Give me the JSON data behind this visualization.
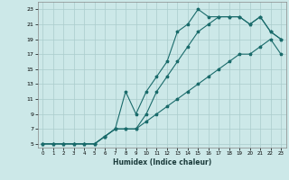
{
  "xlabel": "Humidex (Indice chaleur)",
  "bg_color": "#cce8e8",
  "grid_color": "#aacccc",
  "line_color": "#1a6b6b",
  "xlim": [
    -0.5,
    23.5
  ],
  "ylim": [
    4.5,
    24
  ],
  "xticks": [
    0,
    1,
    2,
    3,
    4,
    5,
    6,
    7,
    8,
    9,
    10,
    11,
    12,
    13,
    14,
    15,
    16,
    17,
    18,
    19,
    20,
    21,
    22,
    23
  ],
  "yticks": [
    5,
    7,
    9,
    11,
    13,
    15,
    17,
    19,
    21,
    23
  ],
  "line1_x": [
    0,
    1,
    2,
    3,
    4,
    5,
    6,
    7,
    8,
    9,
    10,
    11,
    12,
    13,
    14,
    15,
    16,
    17,
    18,
    19,
    20,
    21,
    22,
    23
  ],
  "line1_y": [
    5,
    5,
    5,
    5,
    5,
    5,
    6,
    7,
    7,
    7,
    8,
    9,
    10,
    11,
    12,
    13,
    14,
    15,
    16,
    17,
    17,
    18,
    19,
    17
  ],
  "line2_x": [
    0,
    1,
    2,
    3,
    4,
    5,
    6,
    7,
    8,
    9,
    10,
    11,
    12,
    13,
    14,
    15,
    16,
    17,
    18,
    19,
    20,
    21,
    22,
    23
  ],
  "line2_y": [
    5,
    5,
    5,
    5,
    5,
    5,
    6,
    7,
    7,
    7,
    9,
    12,
    14,
    16,
    18,
    20,
    21,
    22,
    22,
    22,
    21,
    22,
    20,
    19
  ],
  "line3_x": [
    0,
    1,
    2,
    3,
    4,
    5,
    6,
    7,
    8,
    9,
    10,
    11,
    12,
    13,
    14,
    15,
    16,
    17,
    18,
    19,
    20,
    21,
    22,
    23
  ],
  "line3_y": [
    5,
    5,
    5,
    5,
    5,
    5,
    6,
    7,
    12,
    9,
    12,
    14,
    16,
    20,
    21,
    23,
    22,
    22,
    22,
    22,
    21,
    22,
    20,
    19
  ]
}
